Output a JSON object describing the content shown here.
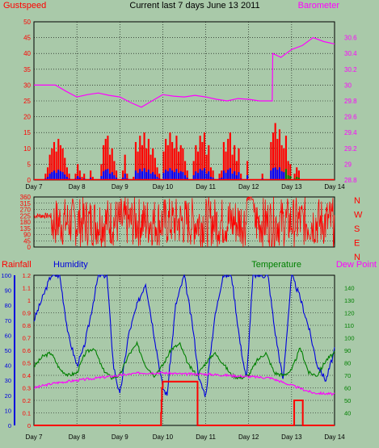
{
  "title": "Current last 7 days June 13 2011",
  "colors": {
    "background": "#a9c9a9",
    "plot_bg": "#a9c9a9",
    "gust": "#ff0000",
    "barometer": "#ff00ff",
    "wind_dir": "#ff0000",
    "rain": "#ff0000",
    "humidity": "#0000dd",
    "temperature": "#008000",
    "dewpoint": "#ff00ff",
    "avg_wind": "#0000ff",
    "avg_wind2": "#008000",
    "grid": "#000000",
    "axis_text": "#000000"
  },
  "chart_data": [
    {
      "id": "wind-baro",
      "type": "line",
      "left_axis": {
        "label": "Gustspeed",
        "min": 0,
        "max": 50,
        "ticks": [
          0,
          5,
          10,
          15,
          20,
          25,
          30,
          35,
          40,
          45,
          50
        ]
      },
      "right_axis": {
        "label": "Barometer",
        "min": 28.8,
        "max": 30.8,
        "ticks": [
          "28.8",
          "29",
          "29.2",
          "29.4",
          "29.6",
          "29.8",
          "30",
          "30.2",
          "30.4",
          "30.6"
        ]
      },
      "x_labels": [
        "Day 7",
        "Day 8",
        "Day 9",
        "Day 10",
        "Day 11",
        "Day 12",
        "Day 13",
        "Day 14"
      ],
      "series": [
        {
          "name": "Gustspeed",
          "kind": "bars",
          "color": "#ff0000",
          "x": [
            0.0,
            0.05,
            0.1,
            0.15,
            0.2,
            0.25,
            0.3,
            0.35,
            0.4,
            0.45,
            0.5,
            0.55,
            0.6,
            0.65,
            0.7,
            0.75,
            0.8,
            0.85,
            0.9,
            0.95,
            1.0,
            1.05,
            1.1,
            1.15,
            1.2,
            1.25,
            1.3,
            1.35,
            1.4,
            1.45,
            1.5,
            1.55,
            1.6,
            1.65,
            1.7,
            1.75,
            1.8,
            1.85,
            1.9,
            1.95,
            2.0,
            2.05,
            2.1,
            2.15,
            2.2,
            2.25,
            2.3,
            2.35,
            2.4,
            2.45,
            2.5,
            2.55,
            2.6,
            2.65,
            2.7,
            2.75,
            2.8,
            2.85,
            2.9,
            2.95,
            3.0,
            3.05,
            3.1,
            3.15,
            3.2,
            3.25,
            3.3,
            3.35,
            3.4,
            3.45,
            3.5,
            3.55,
            3.6,
            3.65,
            3.7,
            3.75,
            3.8,
            3.85,
            3.9,
            3.95,
            4.0,
            4.05,
            4.1,
            4.15,
            4.2,
            4.25,
            4.3,
            4.35,
            4.4,
            4.45,
            4.5,
            4.55,
            4.6,
            4.65,
            4.7,
            4.75,
            4.8,
            4.85,
            4.9,
            4.95,
            5.0,
            5.05,
            5.1,
            5.15,
            5.2,
            5.25,
            5.3,
            5.35,
            5.4,
            5.45,
            5.5,
            5.55,
            5.6,
            5.65,
            5.7,
            5.75,
            5.8,
            5.85,
            5.9,
            5.95,
            6.0,
            6.05,
            6.1,
            6.15,
            6.2,
            6.25,
            6.3,
            6.35,
            6.4,
            6.45,
            6.5,
            6.55,
            6.6,
            6.65,
            6.7,
            6.75,
            6.8,
            6.85,
            6.9,
            6.95
          ],
          "values": [
            0,
            0,
            0,
            0,
            0,
            2,
            4,
            8,
            10,
            12,
            9,
            13,
            11,
            10,
            7,
            4,
            2,
            0,
            0,
            2,
            5,
            3,
            1,
            2,
            0,
            0,
            3,
            1,
            0,
            0,
            0,
            5,
            11,
            13,
            14,
            8,
            10,
            6,
            3,
            0,
            0,
            3,
            8,
            2,
            0,
            0,
            1,
            12,
            9,
            14,
            11,
            15,
            10,
            13,
            8,
            10,
            7,
            4,
            2,
            0,
            9,
            13,
            11,
            15,
            12,
            10,
            14,
            9,
            11,
            10,
            6,
            3,
            0,
            0,
            6,
            11,
            9,
            14,
            12,
            15,
            8,
            11,
            4,
            3,
            0,
            0,
            2,
            3,
            12,
            9,
            13,
            15,
            8,
            11,
            6,
            10,
            2,
            0,
            0,
            6,
            0,
            0,
            0,
            0,
            0,
            0,
            2,
            0,
            0,
            0,
            12,
            15,
            18,
            13,
            16,
            11,
            10,
            14,
            6,
            5,
            0,
            2,
            4,
            3,
            0,
            0,
            0,
            0,
            0,
            0,
            0,
            0,
            0,
            0,
            0,
            0,
            0,
            0,
            0,
            0
          ]
        },
        {
          "name": "Barometer",
          "kind": "line",
          "color": "#ff00ff",
          "x": [
            0.0,
            0.25,
            0.5,
            0.75,
            1.0,
            1.25,
            1.5,
            1.75,
            2.0,
            2.25,
            2.5,
            2.75,
            3.0,
            3.25,
            3.5,
            3.75,
            4.0,
            4.25,
            4.5,
            4.75,
            5.0,
            5.25,
            5.5,
            5.55,
            5.56,
            5.75,
            6.0,
            6.25,
            6.5,
            6.75,
            7.0
          ],
          "values": [
            30.0,
            30.0,
            30.0,
            29.92,
            29.85,
            29.88,
            29.9,
            29.87,
            29.85,
            29.78,
            29.72,
            29.8,
            29.88,
            29.86,
            29.85,
            29.87,
            29.85,
            29.82,
            29.8,
            29.83,
            29.82,
            29.8,
            29.8,
            29.8,
            30.4,
            30.35,
            30.45,
            30.5,
            30.6,
            30.55,
            30.52
          ]
        }
      ]
    },
    {
      "id": "wind-dir",
      "type": "line",
      "left_axis": {
        "label": "",
        "min": 0,
        "max": 360,
        "ticks": [
          0,
          45,
          90,
          135,
          180,
          225,
          270,
          315,
          360
        ]
      },
      "right_axis_letters": [
        "N",
        "W",
        "S",
        "E",
        "N"
      ],
      "x_labels": [],
      "series": [
        {
          "name": "Wind direction",
          "kind": "line",
          "color": "#ff0000",
          "x": [
            0.0,
            0.3,
            0.5,
            0.7,
            0.9,
            1.1,
            1.3,
            1.5,
            1.7,
            1.9,
            2.1,
            2.3,
            2.5,
            2.7,
            2.9,
            3.1,
            3.3,
            3.5,
            3.7,
            3.9,
            4.1,
            4.3,
            4.5,
            4.7,
            4.9,
            5.1,
            5.3,
            5.5,
            5.7,
            5.9,
            6.1,
            6.3,
            6.5,
            6.7,
            7.0
          ],
          "values": [
            225,
            225,
            180,
            250,
            300,
            0,
            340,
            250,
            0,
            315,
            200,
            90,
            300,
            45,
            260,
            10,
            330,
            180,
            280,
            20,
            320,
            150,
            260,
            40,
            350,
            200,
            300,
            270,
            220,
            250,
            60,
            330,
            120,
            300,
            200
          ]
        }
      ]
    },
    {
      "id": "temp-hum-rain",
      "type": "line",
      "left_axis_outer": {
        "label": "Rainfall",
        "min": 0,
        "max": 1.2,
        "ticks": [
          "0",
          "0.1",
          "0.2",
          "0.3",
          "0.4",
          "0.5",
          "0.6",
          "0.7",
          "0.8",
          "0.9",
          "1",
          "1.1",
          "1.2"
        ]
      },
      "left_axis_inner": {
        "label": "Humidity",
        "min": 0,
        "max": 100,
        "ticks": [
          0,
          10,
          20,
          30,
          40,
          50,
          60,
          70,
          80,
          90,
          100
        ]
      },
      "right_axis": {
        "label_temp": "Temperature",
        "label_dew": "Dew Point",
        "min": 30,
        "max": 150,
        "ticks": [
          40,
          50,
          60,
          70,
          80,
          90,
          100,
          110,
          120,
          130,
          140
        ]
      },
      "x_labels": [
        "Day 7",
        "Day 8",
        "Day 9",
        "Day 10",
        "Day 11",
        "Day 12",
        "Day 13",
        "Day 14"
      ],
      "series": [
        {
          "name": "Humidity",
          "kind": "line",
          "color": "#0000dd",
          "x": [
            0.0,
            0.2,
            0.4,
            0.6,
            0.8,
            1.0,
            1.15,
            1.3,
            1.5,
            1.7,
            1.85,
            2.0,
            2.2,
            2.4,
            2.6,
            2.8,
            3.0,
            3.1,
            3.3,
            3.5,
            3.7,
            3.85,
            4.0,
            4.2,
            4.4,
            4.6,
            4.8,
            4.95,
            5.1,
            5.3,
            5.45,
            5.6,
            5.8,
            6.0,
            6.2,
            6.4,
            6.6,
            6.8,
            7.0
          ],
          "values": [
            70,
            85,
            100,
            100,
            60,
            40,
            50,
            70,
            100,
            100,
            40,
            20,
            60,
            80,
            95,
            60,
            25,
            20,
            80,
            100,
            65,
            30,
            20,
            70,
            100,
            100,
            55,
            30,
            100,
            100,
            100,
            65,
            30,
            100,
            85,
            65,
            40,
            30,
            50
          ]
        },
        {
          "name": "Temperature",
          "kind": "line",
          "color": "#008000",
          "x": [
            0.0,
            0.2,
            0.4,
            0.6,
            0.8,
            1.0,
            1.2,
            1.4,
            1.6,
            1.8,
            2.0,
            2.2,
            2.4,
            2.6,
            2.8,
            3.0,
            3.2,
            3.4,
            3.6,
            3.8,
            4.0,
            4.2,
            4.4,
            4.6,
            4.8,
            5.0,
            5.2,
            5.4,
            5.6,
            5.8,
            6.0,
            6.2,
            6.4,
            6.6,
            6.8,
            7.0
          ],
          "values": [
            77,
            85,
            88,
            75,
            70,
            72,
            88,
            92,
            75,
            68,
            70,
            86,
            95,
            78,
            70,
            78,
            91,
            95,
            78,
            70,
            80,
            88,
            80,
            70,
            68,
            70,
            82,
            88,
            72,
            70,
            74,
            92,
            72,
            70,
            82,
            88
          ]
        },
        {
          "name": "Dew Point",
          "kind": "line",
          "color": "#ff00ff",
          "x": [
            0.0,
            0.5,
            1.0,
            1.5,
            2.0,
            2.5,
            3.0,
            3.5,
            4.0,
            4.5,
            5.0,
            5.5,
            6.0,
            6.5,
            7.0
          ],
          "values": [
            60,
            64,
            66,
            68,
            70,
            72,
            72,
            71,
            71,
            70,
            69,
            68,
            62,
            56,
            55
          ]
        },
        {
          "name": "Rainfall",
          "kind": "step",
          "color": "#ff0000",
          "x": [
            0.0,
            2.95,
            2.96,
            2.97,
            2.98,
            3.0,
            3.05,
            3.8,
            3.81,
            6.05,
            6.06,
            6.25,
            6.26,
            7.0
          ],
          "values": [
            0,
            0,
            0.1,
            0.2,
            0.3,
            0.35,
            0.35,
            0.35,
            0,
            0,
            0.2,
            0.2,
            0,
            0
          ]
        }
      ]
    }
  ]
}
